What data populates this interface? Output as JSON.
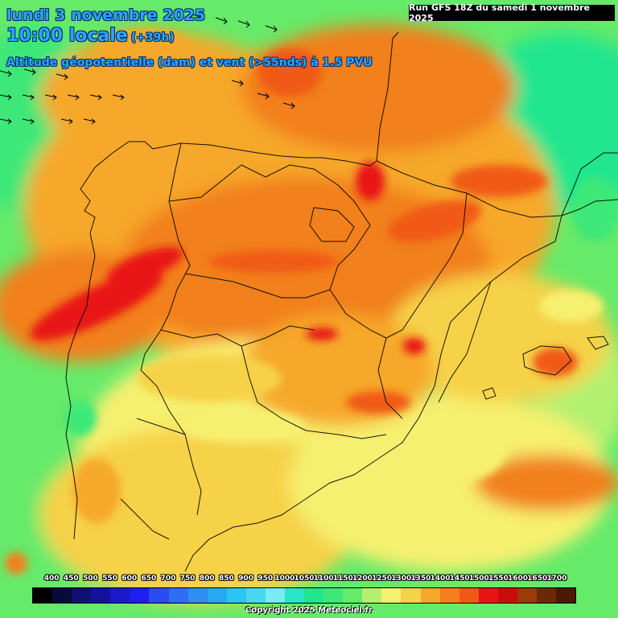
{
  "header": {
    "date_line": "lundi 3 novembre 2025",
    "time_line": "10:00 locale",
    "lead_time": "(+39h)",
    "parameter": "Altitude géopotentielle (dam) et vent (>55nds) à 1.5 PVU",
    "run_info": "Run GFS 18Z du samedi 1 novembre 2025"
  },
  "legend": {
    "tick_labels": [
      "400",
      "450",
      "500",
      "550",
      "600",
      "650",
      "700",
      "750",
      "800",
      "850",
      "900",
      "950",
      "1000",
      "1050",
      "1100",
      "1150",
      "1200",
      "1250",
      "1300",
      "1350",
      "1400",
      "1450",
      "1500",
      "1550",
      "1600",
      "1650",
      "1700"
    ],
    "colors": [
      "#000000",
      "#0a0a3a",
      "#101070",
      "#12129a",
      "#1a1ac8",
      "#1f1ff0",
      "#2a4cf0",
      "#2f6ef0",
      "#2f8ef0",
      "#27a8f0",
      "#2cc4f0",
      "#4ad8f0",
      "#78ecf0",
      "#28e6c8",
      "#20e68e",
      "#3ce878",
      "#66ea6a",
      "#b4f070",
      "#f6f070",
      "#f6d24a",
      "#f6a82c",
      "#f2801c",
      "#f05a18",
      "#e81414",
      "#c80c0c",
      "#9c3a08",
      "#6a2a08",
      "#4a1a06"
    ]
  },
  "map": {
    "palette": {
      "green_light": "#66ea6a",
      "green": "#3ce878",
      "green_cyan": "#20e68e",
      "yellow_green": "#b4f070",
      "yellow": "#f6f070",
      "gold": "#f6d24a",
      "orange_light": "#f6a82c",
      "orange": "#f2801c",
      "orange_dark": "#f05a18",
      "red": "#e81414",
      "boundary": "#000000",
      "wind_barb": "#000000"
    }
  },
  "footer": {
    "copyright": "Copyright 2025 Meteociel.fr"
  }
}
